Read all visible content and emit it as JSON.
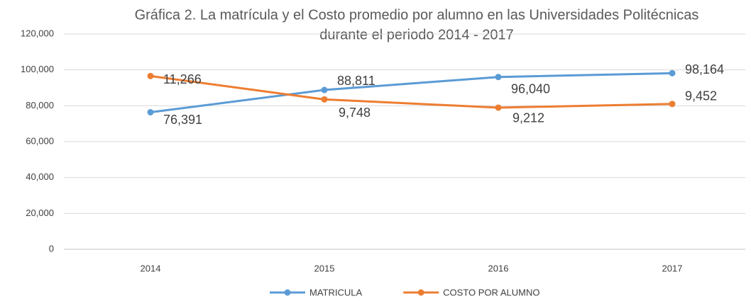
{
  "chart_data": {
    "type": "line",
    "title": "Gráfica 2. La matrícula y el Costo promedio por alumno en las Universidades Politécnicas",
    "subtitle": "durante el periodo 2014 - 2017",
    "categories": [
      "2014",
      "2015",
      "2016",
      "2017"
    ],
    "series": [
      {
        "name": "MATRICULA",
        "color": "#5b9bd5",
        "values": [
          76391,
          88811,
          96040,
          98164
        ],
        "value_labels": [
          "76,391",
          "88,811",
          "96,040",
          "98,164"
        ]
      },
      {
        "name": "COSTO POR ALUMNO",
        "color": "#ed7d31",
        "axis": "y2",
        "values": [
          11266,
          9748,
          9212,
          9452
        ],
        "value_labels": [
          "11,266",
          "9,748",
          "9,212",
          "9,452"
        ]
      }
    ],
    "ylim": [
      0,
      120000
    ],
    "yticks": [
      0,
      {
        "value": 20000,
        "label": "20,000"
      },
      {
        "value": 40000,
        "label": "40,000"
      },
      {
        "value": 60000,
        "label": "60,000"
      },
      {
        "value": 80000,
        "label": "80,000"
      },
      {
        "value": 100000,
        "label": "100,000"
      },
      {
        "value": 120000,
        "label": "120,000"
      }
    ],
    "y2lim": [
      0,
      14000
    ],
    "grid": true,
    "legend": "bottom"
  }
}
